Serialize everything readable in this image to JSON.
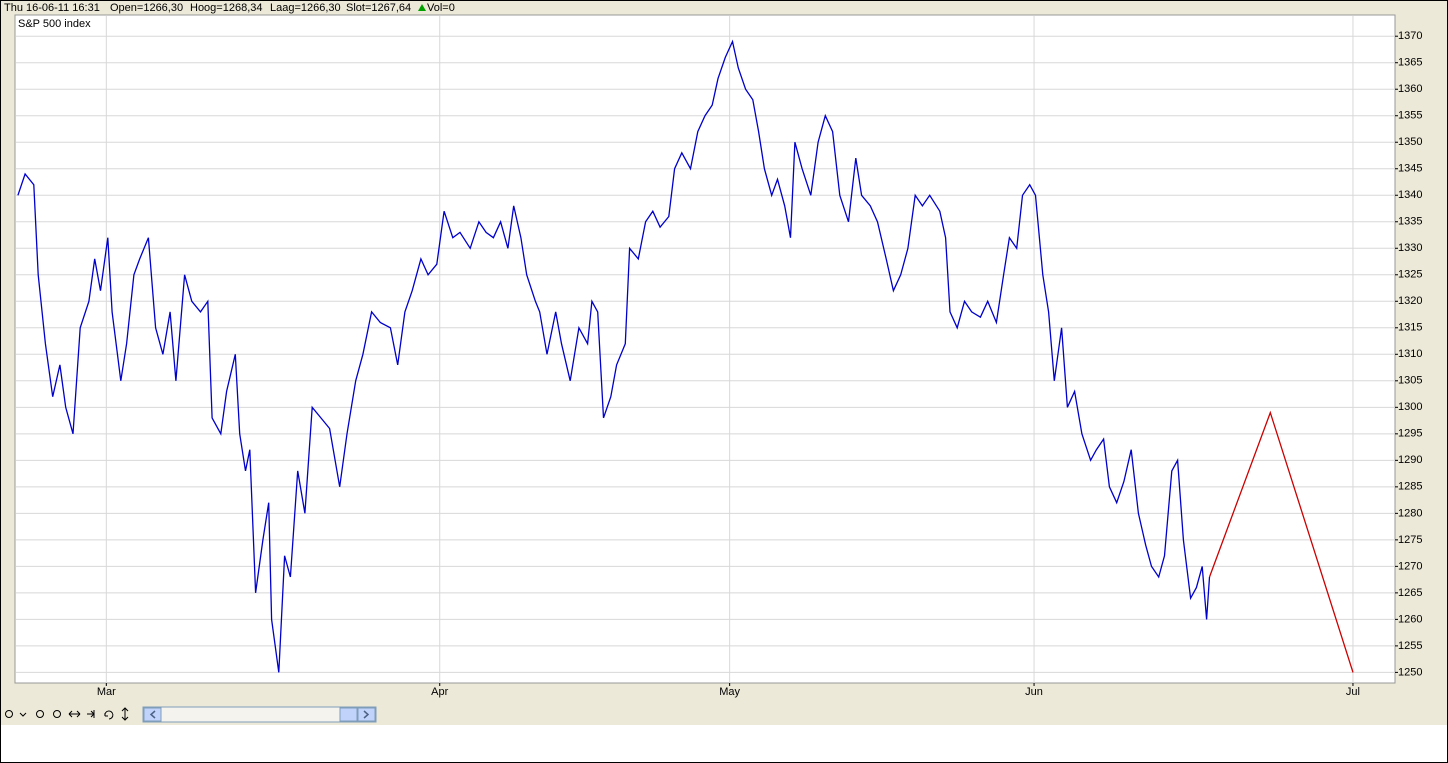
{
  "header": {
    "date": "Thu 16-06-11 16:31",
    "open": "Open=1266,30",
    "high": "Hoog=1268,34",
    "low": "Laag=1266,30",
    "close": "Slot=1267,64",
    "volume": "Vol=0"
  },
  "chart_data": {
    "type": "line",
    "xlim": [
      -6.3,
      88.9
    ],
    "xticks": [
      {
        "value": 0,
        "label": "Mar"
      },
      {
        "value": 23,
        "label": "Apr"
      },
      {
        "value": 43,
        "label": "May"
      },
      {
        "value": 64,
        "label": "Jun"
      },
      {
        "value": 86,
        "label": "Jul"
      }
    ],
    "ylim": [
      1248,
      1374
    ],
    "yticks": [
      1250,
      1255,
      1260,
      1265,
      1270,
      1275,
      1280,
      1285,
      1290,
      1295,
      1300,
      1305,
      1310,
      1315,
      1320,
      1325,
      1330,
      1335,
      1340,
      1345,
      1350,
      1355,
      1360,
      1365,
      1370
    ],
    "grid": true,
    "series": [
      {
        "name": "S&P 500 index",
        "color": "#0000cc",
        "x": [
          -6.1,
          -5.6,
          -5.0,
          -4.7,
          -4.2,
          -3.7,
          -3.2,
          -2.8,
          -2.3,
          -1.8,
          -1.2,
          -0.8,
          -0.4,
          0.1,
          0.4,
          1.0,
          1.4,
          1.9,
          2.3,
          2.9,
          3.4,
          3.9,
          4.4,
          4.8,
          5.4,
          5.9,
          6.5,
          7.0,
          7.3,
          7.9,
          8.3,
          8.9,
          9.2,
          9.6,
          9.9,
          10.3,
          10.8,
          11.2,
          11.4,
          11.9,
          12.3,
          12.7,
          13.2,
          13.7,
          14.2,
          14.8,
          15.4,
          16.1,
          16.6,
          17.2,
          17.7,
          18.3,
          18.9,
          19.6,
          20.1,
          20.6,
          21.1,
          21.7,
          22.2,
          22.8,
          23.3,
          23.9,
          24.4,
          25.1,
          25.7,
          26.2,
          26.7,
          27.2,
          27.7,
          28.1,
          28.6,
          29.0,
          29.6,
          29.9,
          30.4,
          31.0,
          31.4,
          32.0,
          32.6,
          33.2,
          33.5,
          33.9,
          34.3,
          34.8,
          35.2,
          35.8,
          36.1,
          36.7,
          37.2,
          37.7,
          38.2,
          38.8,
          39.2,
          39.7,
          40.3,
          40.8,
          41.3,
          41.8,
          42.2,
          42.7,
          43.2,
          43.6,
          44.1,
          44.6,
          45.0,
          45.4,
          45.9,
          46.3,
          46.8,
          47.2,
          47.5,
          48.0,
          48.6,
          49.1,
          49.6,
          50.1,
          50.6,
          51.2,
          51.7,
          52.1,
          52.7,
          53.2,
          53.8,
          54.3,
          54.8,
          55.3,
          55.8,
          56.3,
          56.8,
          57.5,
          57.9,
          58.2,
          58.7,
          59.2,
          59.7,
          60.3,
          60.8,
          61.4,
          61.9,
          62.3,
          62.8,
          63.2,
          63.7,
          64.1,
          64.6,
          65.0,
          65.4,
          65.9,
          66.3,
          66.8,
          67.3,
          67.9,
          68.3,
          68.8,
          69.2,
          69.7,
          70.2,
          70.7,
          71.2,
          71.7,
          72.1,
          72.6,
          73.0,
          73.5,
          73.9,
          74.3,
          74.8,
          75.2,
          75.6,
          75.9,
          76.1
        ],
        "values": [
          1340,
          1344,
          1342,
          1325,
          1312,
          1302,
          1308,
          1300,
          1295,
          1315,
          1320,
          1328,
          1322,
          1332,
          1318,
          1305,
          1312,
          1325,
          1328,
          1332,
          1315,
          1310,
          1318,
          1305,
          1325,
          1320,
          1318,
          1320,
          1298,
          1295,
          1303,
          1310,
          1295,
          1288,
          1292,
          1265,
          1275,
          1282,
          1260,
          1250,
          1272,
          1268,
          1288,
          1280,
          1300,
          1298,
          1296,
          1285,
          1295,
          1305,
          1310,
          1318,
          1316,
          1315,
          1308,
          1318,
          1322,
          1328,
          1325,
          1327,
          1337,
          1332,
          1333,
          1330,
          1335,
          1333,
          1332,
          1335,
          1330,
          1338,
          1332,
          1325,
          1320,
          1318,
          1310,
          1318,
          1312,
          1305,
          1315,
          1312,
          1320,
          1318,
          1298,
          1302,
          1308,
          1312,
          1330,
          1328,
          1335,
          1337,
          1334,
          1336,
          1345,
          1348,
          1345,
          1352,
          1355,
          1357,
          1362,
          1366,
          1369,
          1364,
          1360,
          1358,
          1352,
          1345,
          1340,
          1343,
          1338,
          1332,
          1350,
          1345,
          1340,
          1350,
          1355,
          1352,
          1340,
          1335,
          1347,
          1340,
          1338,
          1335,
          1328,
          1322,
          1325,
          1330,
          1340,
          1338,
          1340,
          1337,
          1332,
          1318,
          1315,
          1320,
          1318,
          1317,
          1320,
          1316,
          1325,
          1332,
          1330,
          1340,
          1342,
          1340,
          1325,
          1318,
          1305,
          1315,
          1300,
          1303,
          1295,
          1290,
          1292,
          1294,
          1285,
          1282,
          1286,
          1292,
          1280,
          1274,
          1270,
          1268,
          1272,
          1288,
          1290,
          1275,
          1264,
          1266,
          1270,
          1260,
          1268
        ]
      },
      {
        "color": "#cc0000",
        "x": [
          76.1,
          80.3,
          86.0
        ],
        "values": [
          1268,
          1299,
          1250
        ]
      }
    ]
  }
}
